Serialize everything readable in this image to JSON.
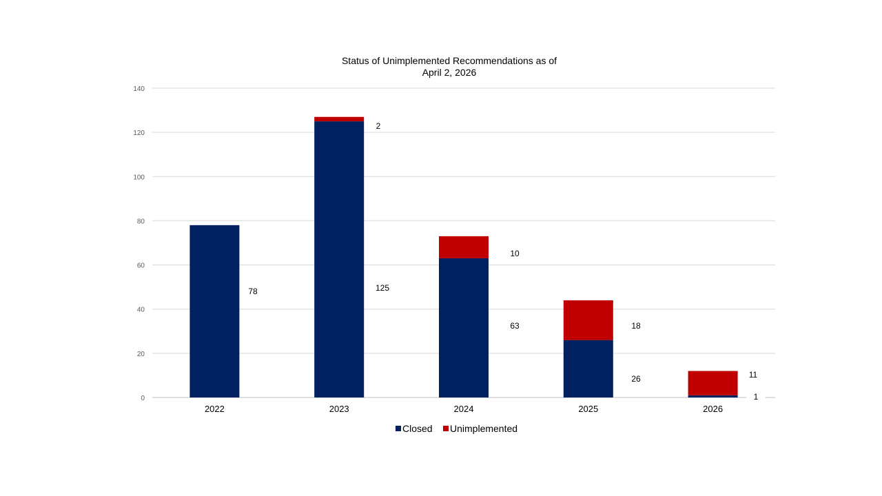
{
  "chart_data": {
    "type": "bar",
    "stacked": true,
    "title": "Status of Unimplemented Recommendations as of April 2, 2026",
    "title_lines": [
      "Status of Unimplemented Recommendations as of",
      "April 2, 2026"
    ],
    "categories": [
      "2022",
      "2023",
      "2024",
      "2025",
      "2026"
    ],
    "series": [
      {
        "name": "Closed",
        "color": "#002060",
        "values": [
          78,
          125,
          63,
          26,
          1
        ]
      },
      {
        "name": "Unimplemented",
        "color": "#C00000",
        "values": [
          0,
          2,
          10,
          18,
          11
        ]
      }
    ],
    "data_labels": [
      {
        "category": "2022",
        "series": "Closed",
        "text": "78"
      },
      {
        "category": "2023",
        "series": "Closed",
        "text": "125"
      },
      {
        "category": "2023",
        "series": "Unimplemented",
        "text": "2"
      },
      {
        "category": "2024",
        "series": "Closed",
        "text": "63"
      },
      {
        "category": "2024",
        "series": "Unimplemented",
        "text": "10"
      },
      {
        "category": "2025",
        "series": "Closed",
        "text": "26"
      },
      {
        "category": "2025",
        "series": "Unimplemented",
        "text": "18"
      },
      {
        "category": "2026",
        "series": "Closed",
        "text": "1"
      },
      {
        "category": "2026",
        "series": "Unimplemented",
        "text": "11"
      }
    ],
    "yticks": [
      "0",
      "20",
      "40",
      "60",
      "80",
      "100",
      "120",
      "140"
    ],
    "ylim": [
      0,
      140
    ],
    "xlabel": "",
    "ylabel": "",
    "grid": true,
    "legend_position": "bottom"
  }
}
